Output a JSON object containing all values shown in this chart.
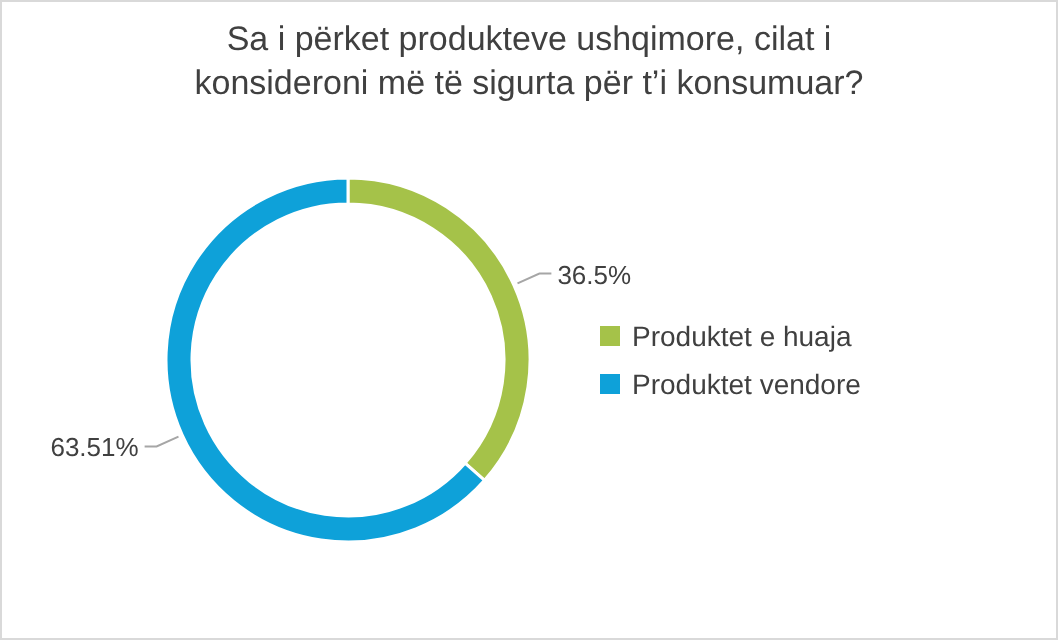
{
  "chart_data": {
    "type": "donut",
    "title": "Sa i përket produkteve ushqimore, cilat i konsideroni më të sigurta për t’i konsumuar?",
    "categories": [
      "Produktet e huaja",
      "Produktet vendore"
    ],
    "values": [
      36.5,
      63.51
    ],
    "colors": [
      "#a5c249",
      "#0ea1d9"
    ],
    "value_labels": [
      "36.5%",
      "63.51%"
    ],
    "legend": "right"
  }
}
